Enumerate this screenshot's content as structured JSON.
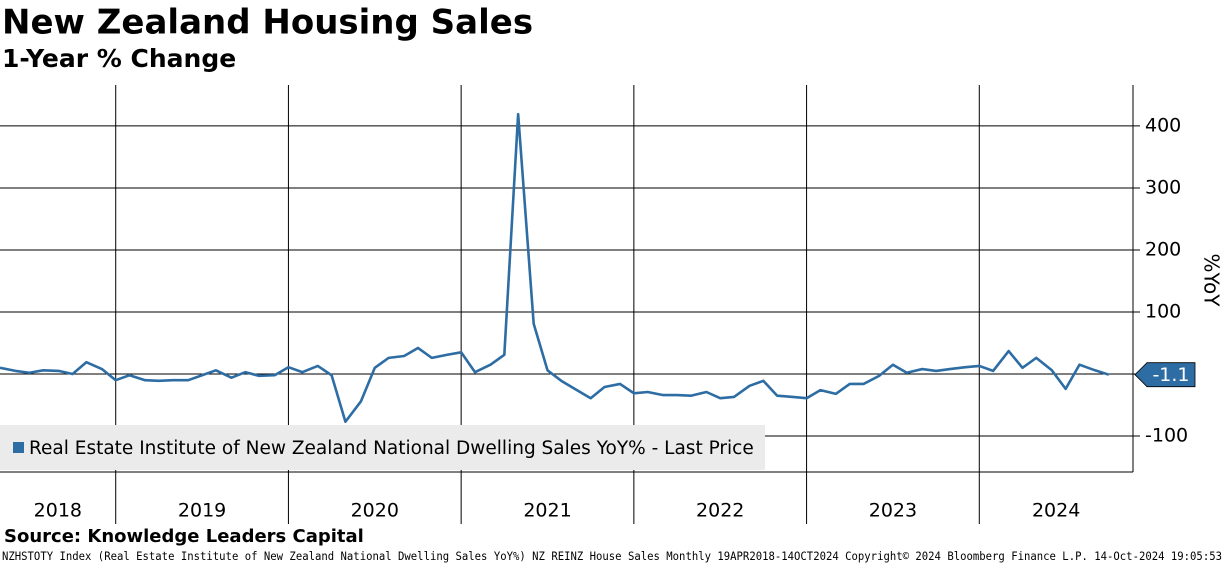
{
  "chart_data": {
    "type": "line",
    "title": "New Zealand Housing Sales",
    "subtitle": "1-Year % Change",
    "y_axis_label": "%YoY",
    "source": "Source: Knowledge Leaders Capital",
    "footer": "NZHSTOTY Index (Real Estate Institute of New Zealand National Dwelling Sales YoY%) NZ REINZ House Sales  Monthly 19APR2018-14OCT2024 Copyright© 2024 Bloomberg Finance L.P. 14-Oct-2024 19:05:53",
    "x": [
      2018.33,
      2018.42,
      2018.5,
      2018.58,
      2018.67,
      2018.75,
      2018.83,
      2018.92,
      2019,
      2019.08,
      2019.17,
      2019.25,
      2019.33,
      2019.42,
      2019.5,
      2019.58,
      2019.67,
      2019.75,
      2019.83,
      2019.92,
      2020,
      2020.08,
      2020.17,
      2020.25,
      2020.33,
      2020.42,
      2020.5,
      2020.58,
      2020.67,
      2020.75,
      2020.83,
      2020.92,
      2021,
      2021.08,
      2021.17,
      2021.25,
      2021.33,
      2021.42,
      2021.5,
      2021.58,
      2021.67,
      2021.75,
      2021.83,
      2021.92,
      2022,
      2022.08,
      2022.17,
      2022.25,
      2022.33,
      2022.42,
      2022.5,
      2022.58,
      2022.67,
      2022.75,
      2022.83,
      2022.92,
      2023,
      2023.08,
      2023.17,
      2023.25,
      2023.33,
      2023.42,
      2023.5,
      2023.58,
      2023.67,
      2023.75,
      2023.83,
      2023.92,
      2024,
      2024.08,
      2024.17,
      2024.25,
      2024.33,
      2024.42,
      2024.5,
      2024.58,
      2024.67,
      2024.75
    ],
    "series": [
      {
        "name": "Real Estate Institute of New Zealand National Dwelling Sales YoY% - Last Price",
        "color": "#2e6da4",
        "values": [
          10,
          5,
          2,
          6,
          5,
          0,
          19,
          8,
          -10,
          -2,
          -10,
          -11,
          -10,
          -10,
          -2,
          6,
          -6,
          3,
          -3,
          -2,
          11,
          3,
          13,
          -2,
          -77,
          -44,
          10,
          26,
          29,
          42,
          26,
          31,
          35,
          3,
          15,
          31,
          419,
          81,
          6,
          -11,
          -26,
          -39,
          -21,
          -16,
          -31,
          -29,
          -34,
          -34,
          -35,
          -29,
          -39,
          -37,
          -19,
          -11,
          -35,
          -37,
          -39,
          -26,
          -32,
          -16,
          -16,
          -3,
          15,
          2,
          8,
          5,
          8,
          11,
          13,
          5,
          37,
          10,
          26,
          6,
          -24,
          15,
          6,
          -1.1
        ]
      }
    ],
    "xlim": [
      2018.33,
      2024.89
    ],
    "xticks": [
      2018,
      2019,
      2020,
      2021,
      2022,
      2023,
      2024
    ],
    "ylim": [
      -158,
      466
    ],
    "yticks": [
      -100,
      0,
      100,
      200,
      300,
      400
    ],
    "grid": true,
    "legend": "lower left"
  }
}
